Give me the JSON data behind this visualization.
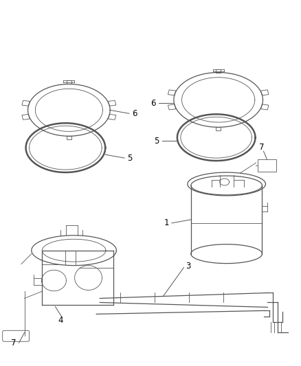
{
  "background_color": "#ffffff",
  "line_color": "#555555",
  "label_color": "#000000",
  "fig_width": 4.38,
  "fig_height": 5.33,
  "dpi": 100,
  "lw_main": 1.3,
  "lw_med": 0.9,
  "lw_thin": 0.6,
  "label_fontsize": 8.5
}
